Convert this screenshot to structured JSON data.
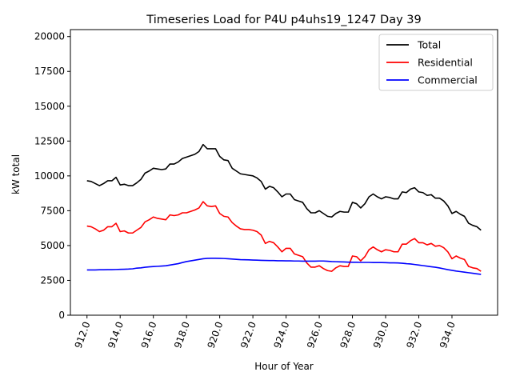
{
  "chart_data": {
    "type": "line",
    "title": "Timeseries Load for P4U p4uhs19_1247  Day 39",
    "xlabel": "Hour of Year",
    "ylabel": "kW total",
    "xlim": [
      911.0,
      936.75
    ],
    "ylim": [
      0,
      20500
    ],
    "x_start": 912.0,
    "x_step": 0.25,
    "x_ticks": [
      912.0,
      914.0,
      916.0,
      918.0,
      920.0,
      922.0,
      924.0,
      926.0,
      928.0,
      930.0,
      932.0,
      934.0
    ],
    "x_tick_labels": [
      "912.0",
      "914.0",
      "916.0",
      "918.0",
      "920.0",
      "922.0",
      "924.0",
      "926.0",
      "928.0",
      "930.0",
      "932.0",
      "934.0"
    ],
    "y_ticks": [
      0,
      2500,
      5000,
      7500,
      10000,
      12500,
      15000,
      17500,
      20000
    ],
    "y_tick_labels": [
      "0",
      "2500",
      "5000",
      "7500",
      "10000",
      "12500",
      "15000",
      "17500",
      "20000"
    ],
    "grid": false,
    "legend_position": "top-right",
    "series": [
      {
        "name": "Total",
        "color": "#000000",
        "values": [
          9650,
          9600,
          9450,
          9300,
          9450,
          9650,
          9650,
          9900,
          9350,
          9400,
          9300,
          9300,
          9500,
          9750,
          10200,
          10350,
          10550,
          10500,
          10450,
          10500,
          10850,
          10850,
          11000,
          11250,
          11350,
          11450,
          11550,
          11750,
          12250,
          11950,
          11950,
          11950,
          11400,
          11150,
          11100,
          10550,
          10350,
          10150,
          10100,
          10050,
          10000,
          9850,
          9600,
          9050,
          9250,
          9150,
          8850,
          8500,
          8700,
          8700,
          8300,
          8200,
          8100,
          7650,
          7350,
          7350,
          7500,
          7300,
          7100,
          7050,
          7300,
          7450,
          7400,
          7400,
          8100,
          8000,
          7700,
          8000,
          8500,
          8700,
          8500,
          8350,
          8500,
          8450,
          8350,
          8350,
          8850,
          8800,
          9050,
          9150,
          8850,
          8800,
          8600,
          8650,
          8400,
          8400,
          8200,
          7850,
          7300,
          7450,
          7250,
          7100,
          6600,
          6450,
          6350,
          6100
        ]
      },
      {
        "name": "Residential",
        "color": "#ff0000",
        "values": [
          6400,
          6350,
          6200,
          6000,
          6100,
          6350,
          6350,
          6600,
          6000,
          6050,
          5900,
          5900,
          6100,
          6300,
          6700,
          6850,
          7050,
          6950,
          6900,
          6850,
          7200,
          7150,
          7200,
          7350,
          7350,
          7450,
          7550,
          7700,
          8150,
          7850,
          7800,
          7850,
          7300,
          7100,
          7050,
          6650,
          6400,
          6200,
          6150,
          6150,
          6100,
          6000,
          5750,
          5150,
          5300,
          5200,
          4900,
          4550,
          4800,
          4800,
          4400,
          4300,
          4200,
          3750,
          3450,
          3450,
          3550,
          3350,
          3200,
          3150,
          3400,
          3550,
          3500,
          3500,
          4250,
          4200,
          3900,
          4200,
          4700,
          4900,
          4700,
          4550,
          4700,
          4650,
          4550,
          4550,
          5100,
          5100,
          5350,
          5500,
          5200,
          5200,
          5050,
          5150,
          4950,
          5000,
          4850,
          4550,
          4050,
          4250,
          4100,
          4000,
          3500,
          3400,
          3350,
          3150
        ]
      },
      {
        "name": "Commercial",
        "color": "#0000ff",
        "values": [
          3250,
          3250,
          3250,
          3260,
          3260,
          3270,
          3270,
          3280,
          3290,
          3300,
          3310,
          3330,
          3380,
          3400,
          3440,
          3470,
          3490,
          3510,
          3530,
          3550,
          3600,
          3650,
          3700,
          3780,
          3850,
          3900,
          3950,
          4000,
          4050,
          4080,
          4090,
          4090,
          4080,
          4070,
          4050,
          4030,
          4010,
          3990,
          3980,
          3970,
          3960,
          3950,
          3940,
          3930,
          3920,
          3920,
          3910,
          3910,
          3900,
          3900,
          3890,
          3890,
          3880,
          3880,
          3880,
          3880,
          3890,
          3890,
          3870,
          3850,
          3840,
          3830,
          3820,
          3810,
          3800,
          3800,
          3790,
          3790,
          3790,
          3780,
          3780,
          3780,
          3770,
          3760,
          3760,
          3750,
          3730,
          3700,
          3680,
          3640,
          3600,
          3560,
          3520,
          3480,
          3440,
          3390,
          3330,
          3270,
          3220,
          3170,
          3130,
          3090,
          3050,
          3010,
          2970,
          2930
        ]
      }
    ]
  }
}
